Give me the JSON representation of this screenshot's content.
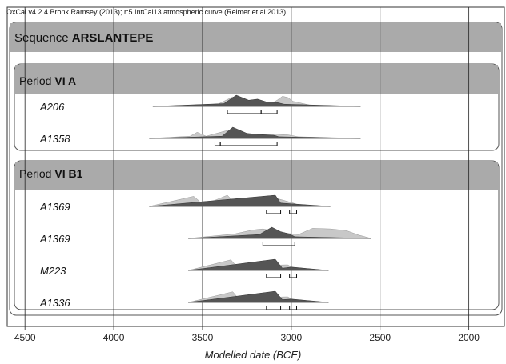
{
  "chart_data": {
    "type": "area",
    "software_note": "OxCal v4.2.4 Bronk Ramsey (2013); r:5 IntCal13 atmospheric curve (Reimer et al 2013)",
    "xlabel": "Modelled date (BCE)",
    "xlim": [
      4600,
      1800
    ],
    "x_ticks": [
      4500,
      4000,
      3500,
      3000,
      2500,
      2000
    ],
    "x_tick_labels": [
      "4500",
      "4000",
      "3500",
      "3000",
      "2500",
      "2000"
    ],
    "sequence": {
      "prefix": "Sequence",
      "name": "ARSLANTEPE"
    },
    "colors": {
      "posterior": "#555555",
      "prior": "#c8c8c8",
      "header": "#aaaaaa"
    },
    "periods": [
      {
        "prefix": "Period",
        "name": "VI A",
        "samples": [
          {
            "label": "A206",
            "range": [
              3780,
              2610
            ],
            "prior": [
              [
                3420,
                0.15
              ],
              [
                3330,
                0.85
              ],
              [
                3270,
                0.6
              ],
              [
                3200,
                0.5
              ],
              [
                3110,
                0.3
              ],
              [
                3080,
                0.55
              ],
              [
                3050,
                0.9
              ],
              [
                3020,
                0.8
              ],
              [
                2990,
                0.45
              ],
              [
                2890,
                0.1
              ]
            ],
            "posterior": [
              [
                3380,
                0.25
              ],
              [
                3310,
                1.0
              ],
              [
                3240,
                0.55
              ],
              [
                3190,
                0.65
              ],
              [
                3140,
                0.4
              ],
              [
                3080,
                0.35
              ],
              [
                3040,
                0.2
              ]
            ],
            "hpd": [
              [
                3360,
                3170
              ],
              [
                3170,
                3080
              ]
            ]
          },
          {
            "label": "A1358",
            "range": [
              3800,
              2610
            ],
            "prior": [
              [
                3570,
                0.2
              ],
              [
                3530,
                0.55
              ],
              [
                3480,
                0.2
              ],
              [
                3340,
                0.8
              ],
              [
                3260,
                0.45
              ],
              [
                3180,
                0.25
              ],
              [
                3090,
                0.3
              ],
              [
                3030,
                0.35
              ],
              [
                2960,
                0.15
              ]
            ],
            "posterior": [
              [
                3390,
                0.2
              ],
              [
                3330,
                1.0
              ],
              [
                3250,
                0.45
              ],
              [
                3180,
                0.35
              ],
              [
                3100,
                0.3
              ],
              [
                3070,
                0.15
              ]
            ],
            "hpd": [
              [
                3430,
                3400
              ],
              [
                3400,
                3080
              ]
            ]
          }
        ]
      },
      {
        "prefix": "Period",
        "name": "VI B1",
        "samples": [
          {
            "label": "A1369",
            "range": [
              3800,
              2780
            ],
            "prior": [
              [
                3550,
                0.9
              ],
              [
                3520,
                0.5
              ],
              [
                3500,
                0.1
              ],
              [
                3360,
                1.0
              ],
              [
                3330,
                0.5
              ],
              [
                3300,
                0.1
              ],
              [
                3090,
                0.75
              ],
              [
                3000,
                0.35
              ],
              [
                2960,
                0.15
              ]
            ],
            "posterior": [
              [
                3090,
                1.0
              ],
              [
                3060,
                0.3
              ]
            ],
            "hpd": [
              [
                3140,
                3060
              ],
              [
                3010,
                2970
              ]
            ]
          },
          {
            "label": "A1369",
            "range": [
              3580,
              2550
            ],
            "prior": [
              [
                3320,
                0.4
              ],
              [
                3220,
                0.75
              ],
              [
                3160,
                0.85
              ],
              [
                3050,
                0.5
              ],
              [
                2960,
                0.35
              ],
              [
                2880,
                0.9
              ],
              [
                2780,
                0.85
              ],
              [
                2690,
                0.7
              ],
              [
                2620,
                0.3
              ]
            ],
            "posterior": [
              [
                3180,
                0.35
              ],
              [
                3110,
                1.0
              ],
              [
                3060,
                0.6
              ],
              [
                3010,
                0.4
              ],
              [
                2980,
                0.15
              ]
            ],
            "hpd": [
              [
                3160,
                2980
              ]
            ]
          },
          {
            "label": "M223",
            "range": [
              3580,
              2790
            ],
            "prior": [
              [
                3340,
                0.95
              ],
              [
                3310,
                0.4
              ],
              [
                3020,
                0.5
              ],
              [
                2980,
                0.15
              ]
            ],
            "posterior": [
              [
                3090,
                1.0
              ],
              [
                3050,
                0.2
              ],
              [
                3000,
                0.3
              ]
            ],
            "hpd": [
              [
                3140,
                3060
              ],
              [
                3010,
                2970
              ]
            ]
          },
          {
            "label": "A1336",
            "range": [
              3580,
              2790
            ],
            "prior": [
              [
                3330,
                0.95
              ],
              [
                3300,
                0.4
              ],
              [
                3020,
                0.5
              ],
              [
                2980,
                0.15
              ]
            ],
            "posterior": [
              [
                3090,
                1.0
              ],
              [
                3050,
                0.25
              ],
              [
                3000,
                0.3
              ]
            ],
            "hpd": [
              [
                3140,
                3060
              ],
              [
                3010,
                2970
              ]
            ]
          }
        ]
      }
    ]
  }
}
